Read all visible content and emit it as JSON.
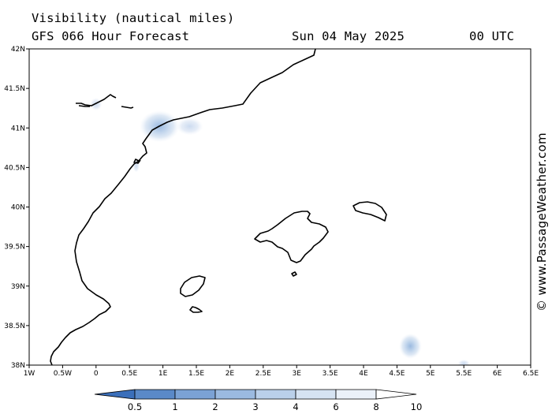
{
  "header": {
    "title": "Visibility (nautical miles)",
    "model": "GFS 066 Hour Forecast",
    "date": "Sun 04 May 2025",
    "time": "00 UTC"
  },
  "map": {
    "lon_range": [
      -1,
      6.5
    ],
    "lat_range": [
      38,
      42
    ],
    "x_ticks": [
      {
        "lon": -1,
        "label": "1W"
      },
      {
        "lon": -0.5,
        "label": "0.5W"
      },
      {
        "lon": 0,
        "label": "0"
      },
      {
        "lon": 0.5,
        "label": "0.5E"
      },
      {
        "lon": 1,
        "label": "1E"
      },
      {
        "lon": 1.5,
        "label": "1.5E"
      },
      {
        "lon": 2,
        "label": "2E"
      },
      {
        "lon": 2.5,
        "label": "2.5E"
      },
      {
        "lon": 3,
        "label": "3E"
      },
      {
        "lon": 3.5,
        "label": "3.5E"
      },
      {
        "lon": 4,
        "label": "4E"
      },
      {
        "lon": 4.5,
        "label": "4.5E"
      },
      {
        "lon": 5,
        "label": "5E"
      },
      {
        "lon": 5.5,
        "label": "5.5E"
      },
      {
        "lon": 6,
        "label": "6E"
      },
      {
        "lon": 6.5,
        "label": "6.5E"
      }
    ],
    "y_ticks": [
      {
        "lat": 42,
        "label": "42N"
      },
      {
        "lat": 41.5,
        "label": "41.5N"
      },
      {
        "lat": 41,
        "label": "41N"
      },
      {
        "lat": 40.5,
        "label": "40.5N"
      },
      {
        "lat": 40,
        "label": "40N"
      },
      {
        "lat": 39.5,
        "label": "39.5N"
      },
      {
        "lat": 39,
        "label": "39N"
      },
      {
        "lat": 38.5,
        "label": "38.5N"
      },
      {
        "lat": 38,
        "label": "38N"
      }
    ],
    "visibility_patches": [
      {
        "lon": 0.95,
        "lat": 41.02,
        "rlon": 0.3,
        "rlat": 0.2,
        "level": 1
      },
      {
        "lon": 1.4,
        "lat": 41.02,
        "rlon": 0.2,
        "rlat": 0.11,
        "level": 0
      },
      {
        "lon": 0,
        "lat": 41.3,
        "rlon": 0.09,
        "rlat": 0.08,
        "level": 0
      },
      {
        "lon": 0.6,
        "lat": 40.52,
        "rlon": 0.05,
        "rlat": 0.08,
        "level": 0
      },
      {
        "lon": 4.7,
        "lat": 38.24,
        "rlon": 0.17,
        "rlat": 0.16,
        "level": 1
      },
      {
        "lon": 5.5,
        "lat": 38.02,
        "rlon": 0.09,
        "rlat": 0.05,
        "level": 0
      }
    ]
  },
  "legend": {
    "colors": [
      "#3b6fba",
      "#5a89c8",
      "#7ba2d5",
      "#9bbae0",
      "#bad0ea",
      "#d6e3f2",
      "#ebf1f9",
      "#ffffff"
    ],
    "labels": [
      "0.5",
      "1",
      "2",
      "3",
      "4",
      "6",
      "8",
      "10"
    ]
  },
  "watermark": "© www.PassageWeather.com"
}
